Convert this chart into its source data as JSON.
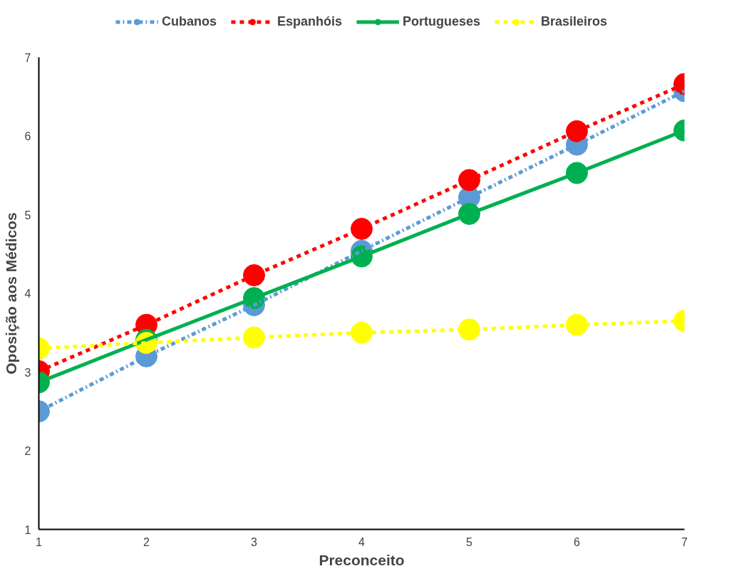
{
  "chart_data": {
    "type": "line",
    "xlabel": "Preconceito",
    "ylabel": "Oposição aos Médicos",
    "x": [
      1,
      2,
      3,
      4,
      5,
      6,
      7
    ],
    "series": [
      {
        "name": "Cubanos",
        "color": "#5b9bd5",
        "line_style": "dashdot",
        "values": [
          2.5,
          3.2,
          3.85,
          4.54,
          5.22,
          5.89,
          6.57
        ]
      },
      {
        "name": "Espanhóis",
        "color": "#ff0000",
        "line_style": "dashed",
        "values": [
          3.01,
          3.6,
          4.23,
          4.82,
          5.44,
          6.06,
          6.66
        ]
      },
      {
        "name": "Portugueses",
        "color": "#00b050",
        "line_style": "solid",
        "values": [
          2.87,
          3.41,
          3.94,
          4.47,
          5.01,
          5.53,
          6.07
        ]
      },
      {
        "name": "Brasileiros",
        "color": "#ffff00",
        "line_style": "dashed",
        "values": [
          3.3,
          3.37,
          3.44,
          3.5,
          3.54,
          3.6,
          3.65
        ]
      }
    ],
    "xlim": [
      1,
      7
    ],
    "xticks": [
      1,
      2,
      3,
      4,
      5,
      6,
      7
    ],
    "ylim": [
      1,
      7
    ],
    "yticks": [
      1,
      2,
      3,
      4,
      5,
      6,
      7
    ],
    "grid": false,
    "legend": "top",
    "marker": "circle"
  }
}
